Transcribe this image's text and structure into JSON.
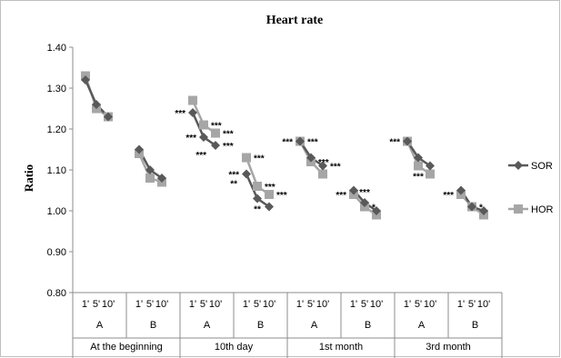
{
  "chart_data": {
    "type": "line",
    "title": "Heart rate",
    "ylabel": "Ratio",
    "xlabel": "",
    "ylim": [
      0.8,
      1.4
    ],
    "yticks": [
      "0.80",
      "0.90",
      "1.00",
      "1.10",
      "1.20",
      "1.30",
      "1.40"
    ],
    "grid": false,
    "legend_position": "right",
    "periods": [
      "At the beginning",
      "10th day",
      "1st month",
      "3rd month"
    ],
    "groups": [
      "A",
      "B"
    ],
    "time_labels": [
      "1'",
      "5'",
      "10'"
    ],
    "series": [
      {
        "name": "SOR",
        "color": "#595959",
        "marker": "diamond",
        "groups": [
          [
            1.32,
            1.26,
            1.23
          ],
          [
            1.15,
            1.1,
            1.08
          ],
          [
            1.24,
            1.18,
            1.16
          ],
          [
            1.09,
            1.03,
            1.01
          ],
          [
            1.17,
            1.13,
            1.11
          ],
          [
            1.05,
            1.02,
            1.0
          ],
          [
            1.17,
            1.13,
            1.11
          ],
          [
            1.05,
            1.01,
            1.0
          ]
        ]
      },
      {
        "name": "HOR",
        "color": "#a6a6a6",
        "marker": "square",
        "groups": [
          [
            1.33,
            1.25,
            1.23
          ],
          [
            1.14,
            1.08,
            1.07
          ],
          [
            1.27,
            1.21,
            1.19
          ],
          [
            1.13,
            1.06,
            1.04
          ],
          [
            1.17,
            1.12,
            1.09
          ],
          [
            1.04,
            1.01,
            0.99
          ],
          [
            1.17,
            1.11,
            1.09
          ],
          [
            1.04,
            1.01,
            0.99
          ]
        ]
      }
    ],
    "annotations": [
      {
        "group": 2,
        "point": 0,
        "series": "SOR",
        "text": "***",
        "side": "left"
      },
      {
        "group": 2,
        "point": 1,
        "series": "HOR",
        "text": "***",
        "side": "right"
      },
      {
        "group": 2,
        "point": 2,
        "series": "HOR",
        "text": "***",
        "side": "right"
      },
      {
        "group": 2,
        "point": 1,
        "series": "SOR",
        "text": "***",
        "side": "left"
      },
      {
        "group": 2,
        "point": 2,
        "series": "SOR",
        "text": "***",
        "side": "right"
      },
      {
        "group": 2,
        "point": 2,
        "series": "SOR",
        "text": "***",
        "side": "below-left"
      },
      {
        "group": 3,
        "point": 0,
        "series": "HOR",
        "text": "***",
        "side": "right"
      },
      {
        "group": 3,
        "point": 0,
        "series": "SOR",
        "text": "***",
        "side": "left"
      },
      {
        "group": 3,
        "point": 1,
        "series": "HOR",
        "text": "***",
        "side": "right"
      },
      {
        "group": 3,
        "point": 2,
        "series": "HOR",
        "text": "***",
        "side": "right"
      },
      {
        "group": 3,
        "point": 0,
        "series": "SOR",
        "text": "**",
        "side": "below-left"
      },
      {
        "group": 3,
        "point": 1,
        "series": "SOR",
        "text": "**",
        "side": "below"
      },
      {
        "group": 4,
        "point": 0,
        "series": "HOR",
        "text": "***",
        "side": "left"
      },
      {
        "group": 4,
        "point": 0,
        "series": "HOR",
        "text": "***",
        "side": "right"
      },
      {
        "group": 4,
        "point": 1,
        "series": "HOR",
        "text": "***",
        "side": "right"
      },
      {
        "group": 4,
        "point": 2,
        "series": "SOR",
        "text": "***",
        "side": "right"
      },
      {
        "group": 5,
        "point": 0,
        "series": "HOR",
        "text": "***",
        "side": "left"
      },
      {
        "group": 5,
        "point": 1,
        "series": "SOR",
        "text": "***",
        "side": "above"
      },
      {
        "group": 5,
        "point": 1,
        "series": "HOR",
        "text": "*",
        "side": "right"
      },
      {
        "group": 6,
        "point": 0,
        "series": "HOR",
        "text": "***",
        "side": "left"
      },
      {
        "group": 6,
        "point": 1,
        "series": "HOR",
        "text": "***",
        "side": "below"
      },
      {
        "group": 7,
        "point": 0,
        "series": "HOR",
        "text": "***",
        "side": "left"
      },
      {
        "group": 7,
        "point": 1,
        "series": "SOR",
        "text": "*",
        "side": "right"
      }
    ]
  }
}
